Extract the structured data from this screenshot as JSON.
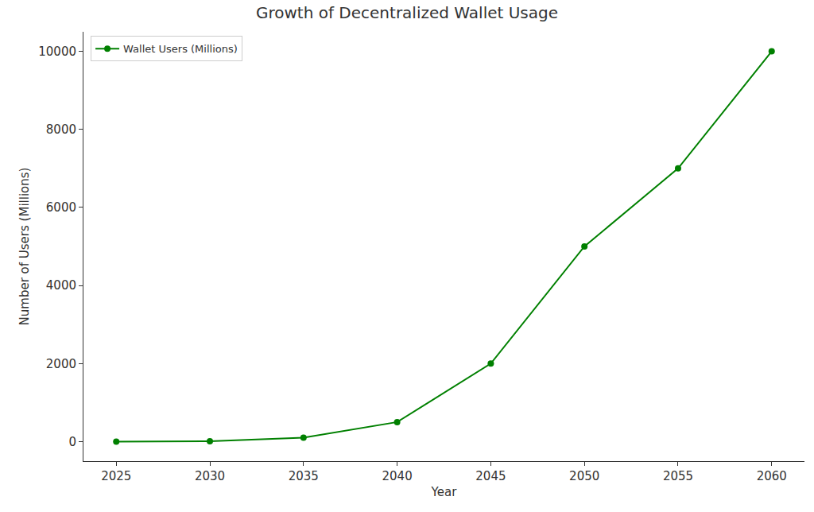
{
  "chart_data": {
    "type": "line",
    "title": "Growth of Decentralized Wallet Usage",
    "x_label": "Year",
    "y_label": "Number of Users (Millions)",
    "x": [
      2025,
      2030,
      2035,
      2040,
      2045,
      2050,
      2055,
      2060
    ],
    "series": [
      {
        "name": "Wallet Users (Millions)",
        "color": "#008000",
        "marker": "circle",
        "line_style": "solid",
        "values": [
          1,
          10,
          100,
          500,
          2000,
          5000,
          7000,
          10000
        ]
      }
    ],
    "xlim": [
      2023.25,
      2061.75
    ],
    "xticks": [
      2025,
      2030,
      2035,
      2040,
      2045,
      2050,
      2055,
      2060
    ],
    "ylim": [
      -500,
      10500
    ],
    "yticks": [
      0,
      2000,
      4000,
      6000,
      8000,
      10000
    ],
    "grid": false,
    "legend": "upper left"
  }
}
